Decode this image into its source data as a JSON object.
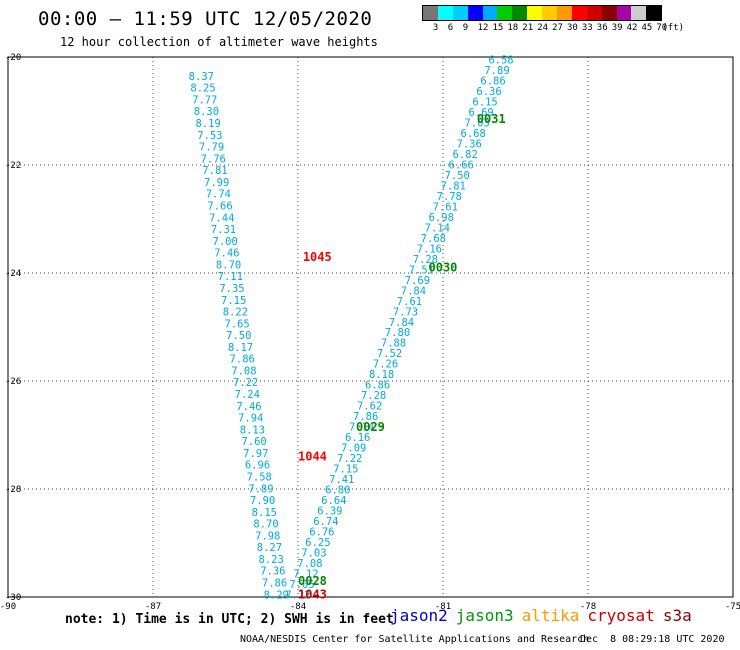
{
  "header": {
    "title": "00:00 – 11:59 UTC 12/05/2020",
    "subtitle": "12 hour collection of altimeter wave heights"
  },
  "colorbar": {
    "colors": [
      "#777777",
      "#00ffff",
      "#00ccff",
      "#0000ff",
      "#00aaff",
      "#00cc00",
      "#008800",
      "#ffff00",
      "#ffcc00",
      "#ff9900",
      "#ff0000",
      "#cc0000",
      "#880000",
      "#aa00aa",
      "#cccccc",
      "#000000"
    ],
    "labels": [
      "3",
      "6",
      "9",
      "12",
      "15",
      "18",
      "21",
      "24",
      "27",
      "30",
      "33",
      "36",
      "39",
      "42",
      "45",
      "70",
      "(ft)"
    ]
  },
  "chart_data": {
    "type": "scatter",
    "xlim": [
      -90,
      -75
    ],
    "ylim": [
      -30,
      -20
    ],
    "x_ticks": [
      "-90",
      "-87",
      "-84",
      "-81",
      "-78",
      "-75"
    ],
    "y_ticks": [
      "-20",
      "-22",
      "-24",
      "-26",
      "-28",
      "-30"
    ],
    "grid": true,
    "series": [
      {
        "name": "cryosat",
        "color": "#00aadd",
        "start": [
          -86.0,
          -20.35
        ],
        "end": [
          -84.45,
          -29.95
        ],
        "values": [
          "8.37",
          "8.25",
          "7.77",
          "8.30",
          "8.19",
          "7.53",
          "7.79",
          "7.76",
          "7.81",
          "7.99",
          "7.74",
          "7.66",
          "7.44",
          "7.31",
          "7.00",
          "7.46",
          "8.70",
          "7.11",
          "7.35",
          "7.15",
          "8.22",
          "7.65",
          "7.50",
          "8.17",
          "7.86",
          "7.08",
          "7.22",
          "7.24",
          "7.46",
          "7.94",
          "8.13",
          "7.60",
          "7.97",
          "6.96",
          "7.58",
          "7.89",
          "7.90",
          "8.15",
          "8.70",
          "7.98",
          "8.27",
          "8.23",
          "7.36",
          "7.86",
          "8.29"
        ]
      },
      {
        "name": "jason3",
        "color": "#00aadd",
        "start": [
          -79.8,
          -20.05
        ],
        "end": [
          -84.0,
          -29.95
        ],
        "values": [
          "6.58",
          "7.89",
          "6.86",
          "6.36",
          "6.15",
          "6.69",
          "7.03",
          "6.68",
          "7.36",
          "6.82",
          "6.66",
          "7.50",
          "7.81",
          "7.78",
          "7.61",
          "6.98",
          "7.14",
          "7.68",
          "7.16",
          "7.28",
          "7.51",
          "7.69",
          "7.84",
          "7.61",
          "7.73",
          "7.84",
          "7.80",
          "7.88",
          "7.52",
          "7.26",
          "8.18",
          "6.86",
          "7.28",
          "7.62",
          "7.86",
          "7.14",
          "6.16",
          "7.09",
          "7.22",
          "7.15",
          "7.41",
          "6.80",
          "6.64",
          "6.39",
          "6.74",
          "6.76",
          "6.25",
          "7.03",
          "7.08",
          "7.12",
          "7.05",
          "7.22"
        ]
      }
    ],
    "annotations": [
      {
        "text": "1045",
        "x": -83.9,
        "y": -23.7,
        "color": "#ff0000"
      },
      {
        "text": "1044",
        "x": -84.0,
        "y": -27.4,
        "color": "#ff0000"
      },
      {
        "text": "0031",
        "x": -80.3,
        "y": -21.15,
        "color": "#008800"
      },
      {
        "text": "0030",
        "x": -81.3,
        "y": -23.9,
        "color": "#008800"
      },
      {
        "text": "0029",
        "x": -82.8,
        "y": -26.85,
        "color": "#008800"
      },
      {
        "text": "0028",
        "x": -84.0,
        "y": -29.7,
        "color": "#008800"
      },
      {
        "text": "1043",
        "x": -84.0,
        "y": -29.95,
        "color": "#cc0000"
      }
    ]
  },
  "footer": {
    "note": "note: 1) Time is in UTC; 2) SWH is in feet",
    "satellites": [
      {
        "name": "jason2",
        "color": "#0000cc"
      },
      {
        "name": "jason3",
        "color": "#009900"
      },
      {
        "name": "altika",
        "color": "#ff9900"
      },
      {
        "name": "cryosat",
        "color": "#cc0000"
      },
      {
        "name": "s3a",
        "color": "#880000"
      }
    ],
    "credit": "NOAA/NESDIS Center for Satellite Applications and Research",
    "timestamp": "Dec  8 08:29:18 UTC 2020"
  }
}
